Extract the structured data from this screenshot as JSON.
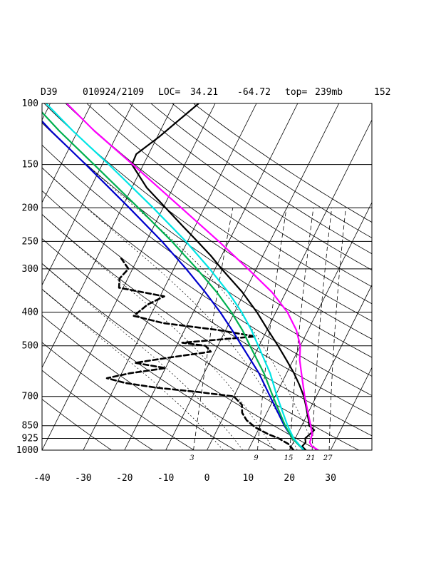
{
  "header": {
    "station": "D39",
    "datetime": "010924/2109",
    "loc_label": "LOC=",
    "lat": "34.21",
    "lon": "-64.72",
    "top_label": "top=",
    "top_value": "239mb",
    "extra": "152"
  },
  "chart_data": {
    "type": "line",
    "title": "",
    "xlabel": "",
    "ylabel": "",
    "ylog": true,
    "skew_per_decade_c": 42,
    "xlim_c_at_1000": [
      -40,
      40
    ],
    "ylim_mb": [
      1000,
      100
    ],
    "pressure_levels": [
      100,
      150,
      200,
      250,
      300,
      400,
      500,
      700,
      850,
      925,
      1000
    ],
    "pressure_labels": [
      "100",
      "150",
      "200",
      "250",
      "300",
      "400",
      "500",
      "700",
      "850",
      "925",
      "1000"
    ],
    "temperature_ticks": [
      -40,
      -30,
      -20,
      -10,
      0,
      10,
      20,
      30
    ],
    "temperature_labels": [
      "-40",
      "-30",
      "-20",
      "-10",
      "0",
      "10",
      "20",
      "30"
    ],
    "isotherms_c": [
      -150,
      -140,
      -130,
      -120,
      -110,
      -100,
      -90,
      -80,
      -70,
      -60,
      -50,
      -40,
      -30,
      -20,
      -10,
      0,
      10,
      20,
      30,
      40
    ],
    "dry_adiabats_theta_k": [
      250,
      260,
      270,
      280,
      290,
      300,
      310,
      320,
      330,
      340,
      350,
      360,
      370,
      380,
      390,
      400,
      410,
      420,
      430,
      440
    ],
    "moist_adiabats_thetae_k": [
      290,
      300,
      320,
      340,
      360
    ],
    "mixing_ratio_lines": [
      {
        "value": 3,
        "label": "3"
      },
      {
        "value": 9,
        "label": "9"
      },
      {
        "value": 15,
        "label": "15"
      },
      {
        "value": 21,
        "label": "21"
      },
      {
        "value": 27,
        "label": "27"
      }
    ],
    "series": [
      {
        "color": "#000000",
        "dash": false,
        "points": [
          [
            1000,
            24
          ],
          [
            975,
            22.6
          ],
          [
            950,
            23
          ],
          [
            925,
            22.4
          ],
          [
            900,
            23
          ],
          [
            875,
            23.6
          ],
          [
            850,
            21.8
          ],
          [
            825,
            21.2
          ],
          [
            800,
            20.4
          ],
          [
            750,
            18.8
          ],
          [
            700,
            17
          ],
          [
            650,
            14.6
          ],
          [
            600,
            11.8
          ],
          [
            550,
            8.4
          ],
          [
            500,
            4.6
          ],
          [
            450,
            0.2
          ],
          [
            400,
            -4.6
          ],
          [
            350,
            -10.6
          ],
          [
            300,
            -18.4
          ],
          [
            275,
            -22.6
          ],
          [
            250,
            -27.6
          ],
          [
            225,
            -33.2
          ],
          [
            200,
            -39.4
          ],
          [
            175,
            -46.4
          ],
          [
            150,
            -52.8
          ],
          [
            140,
            -53
          ],
          [
            125,
            -49.6
          ],
          [
            110,
            -46.4
          ],
          [
            100,
            -44
          ]
        ]
      },
      {
        "color": "#000000",
        "dash": true,
        "points": [
          [
            1000,
            21
          ],
          [
            960,
            19
          ],
          [
            925,
            16
          ],
          [
            900,
            13
          ],
          [
            860,
            9
          ],
          [
            820,
            6
          ],
          [
            780,
            4
          ],
          [
            740,
            3
          ],
          [
            700,
            0
          ],
          [
            680,
            -9
          ],
          [
            660,
            -20
          ],
          [
            640,
            -28
          ],
          [
            620,
            -33
          ],
          [
            600,
            -28
          ],
          [
            580,
            -20
          ],
          [
            560,
            -28
          ],
          [
            540,
            -20
          ],
          [
            520,
            -11
          ],
          [
            500,
            -13
          ],
          [
            490,
            -19
          ],
          [
            470,
            -2
          ],
          [
            450,
            -12
          ],
          [
            430,
            -26
          ],
          [
            410,
            -34
          ],
          [
            380,
            -32
          ],
          [
            360,
            -29
          ],
          [
            340,
            -41
          ],
          [
            320,
            -42
          ],
          [
            300,
            -41
          ],
          [
            280,
            -44
          ]
        ]
      },
      {
        "color": "#0000cc",
        "dash": false,
        "points": [
          [
            1000,
            23.5
          ],
          [
            925,
            19.3
          ],
          [
            850,
            15.8
          ],
          [
            700,
            8.8
          ],
          [
            600,
            3.3
          ],
          [
            500,
            -4.2
          ],
          [
            450,
            -8.5
          ],
          [
            400,
            -13.5
          ],
          [
            350,
            -19.6
          ],
          [
            300,
            -27
          ],
          [
            250,
            -36.2
          ],
          [
            200,
            -48.2
          ],
          [
            150,
            -64
          ],
          [
            120,
            -76.5
          ],
          [
            100,
            -86
          ]
        ]
      },
      {
        "color": "#00b050",
        "dash": false,
        "points": [
          [
            1000,
            23.5
          ],
          [
            925,
            19.3
          ],
          [
            850,
            16
          ],
          [
            700,
            9.5
          ],
          [
            600,
            4.5
          ],
          [
            500,
            -2.2
          ],
          [
            450,
            -6
          ],
          [
            400,
            -10.8
          ],
          [
            350,
            -16.8
          ],
          [
            300,
            -24.4
          ],
          [
            250,
            -33.8
          ],
          [
            200,
            -46
          ],
          [
            150,
            -62
          ],
          [
            120,
            -74.5
          ],
          [
            100,
            -84
          ]
        ]
      },
      {
        "color": "#00e5e5",
        "dash": false,
        "points": [
          [
            1000,
            23.5
          ],
          [
            925,
            19.6
          ],
          [
            850,
            16.6
          ],
          [
            700,
            10.5
          ],
          [
            600,
            6
          ],
          [
            500,
            -0.2
          ],
          [
            450,
            -3.8
          ],
          [
            400,
            -8.3
          ],
          [
            350,
            -14
          ],
          [
            300,
            -21.3
          ],
          [
            250,
            -30.4
          ],
          [
            200,
            -42.4
          ],
          [
            150,
            -58.4
          ],
          [
            120,
            -71.2
          ],
          [
            100,
            -81
          ]
        ]
      },
      {
        "color": "#ff00ff",
        "dash": false,
        "points": [
          [
            1000,
            27
          ],
          [
            975,
            25
          ],
          [
            950,
            24
          ],
          [
            925,
            23.8
          ],
          [
            900,
            23.6
          ],
          [
            850,
            22.2
          ],
          [
            700,
            17.2
          ],
          [
            600,
            13.6
          ],
          [
            550,
            11.6
          ],
          [
            500,
            10
          ],
          [
            450,
            7.1
          ],
          [
            400,
            2.8
          ],
          [
            350,
            -3.4
          ],
          [
            300,
            -12
          ],
          [
            250,
            -22.4
          ],
          [
            200,
            -35.6
          ],
          [
            150,
            -52.6
          ],
          [
            120,
            -66
          ],
          [
            100,
            -76
          ]
        ]
      }
    ]
  }
}
